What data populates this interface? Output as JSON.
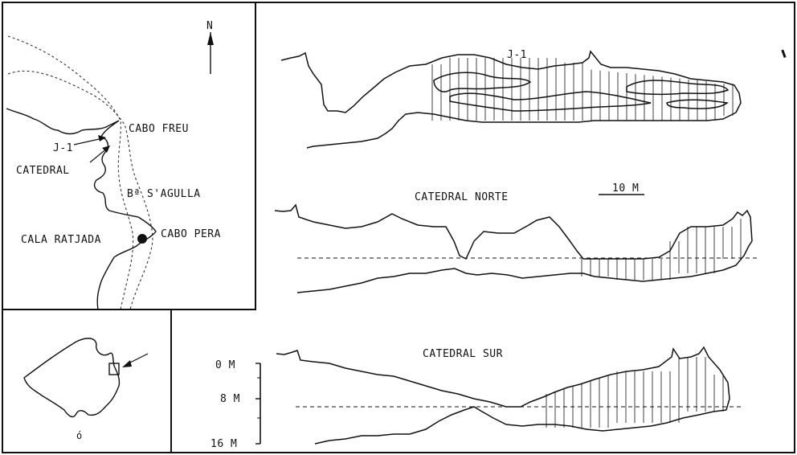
{
  "map": {
    "north": "N",
    "places": {
      "cabo_freu": "CABO FREU",
      "j1": "J-1",
      "catedral": "CATEDRAL",
      "bahia": "Bª S'AGULLA",
      "cala_ratjada": "CALA RATJADA",
      "cabo_pera": "CABO PERA"
    }
  },
  "profiles": {
    "j1_title": "J-1",
    "norte_title": "CATEDRAL NORTE",
    "sur_title": "CATEDRAL SUR",
    "scale_bar": "10 M"
  },
  "depth_axis": {
    "ticks": [
      "0 M",
      "8 M",
      "16 M"
    ]
  },
  "inset": {
    "marker": "ó"
  }
}
